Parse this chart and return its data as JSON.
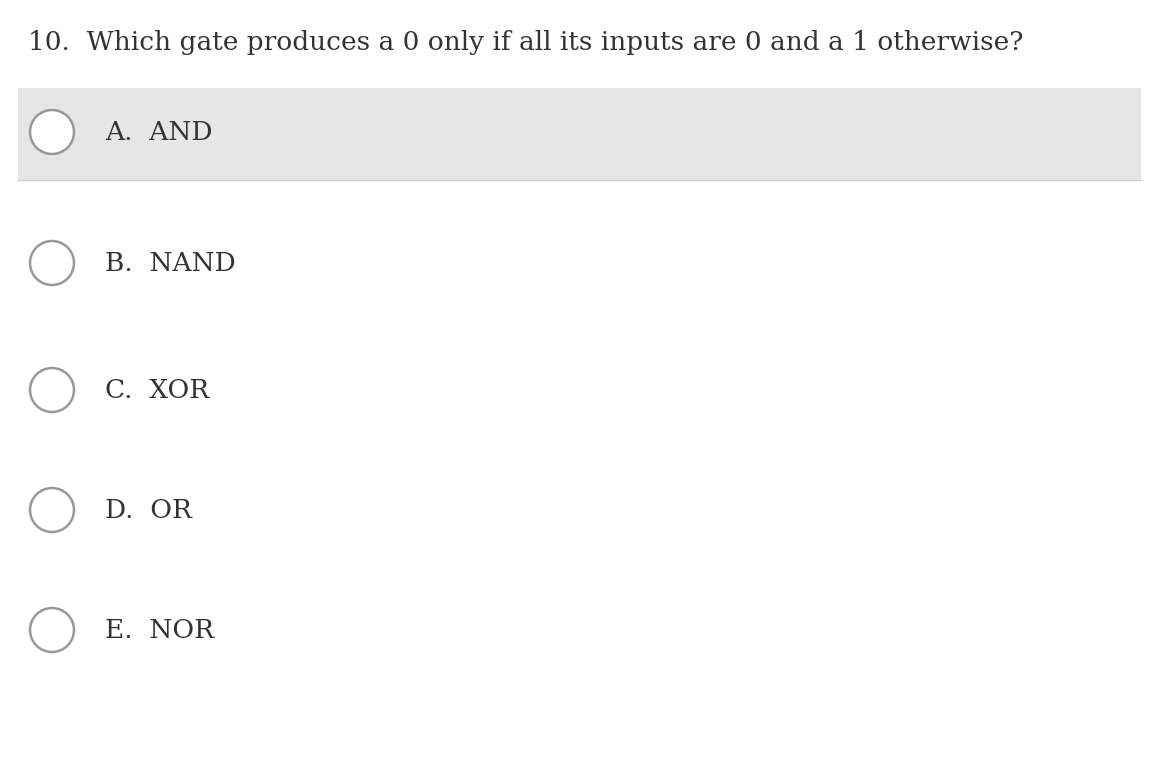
{
  "question": "10.  Which gate produces a 0 only if all its inputs are 0 and a 1 otherwise?",
  "options": [
    {
      "label": "A.",
      "text": "AND",
      "highlighted": true
    },
    {
      "label": "B.",
      "text": "NAND",
      "highlighted": false
    },
    {
      "label": "C.",
      "text": "XOR",
      "highlighted": false
    },
    {
      "label": "D.",
      "text": "OR",
      "highlighted": false
    },
    {
      "label": "E.",
      "text": "NOR",
      "highlighted": false
    }
  ],
  "bg_color": "#ffffff",
  "highlight_color": "#e6e6e6",
  "circle_edge_color": "#999999",
  "circle_face_color": "#ffffff",
  "text_color": "#333333",
  "question_fontsize": 19,
  "option_fontsize": 19,
  "fig_width": 11.59,
  "fig_height": 7.79,
  "dpi": 100
}
